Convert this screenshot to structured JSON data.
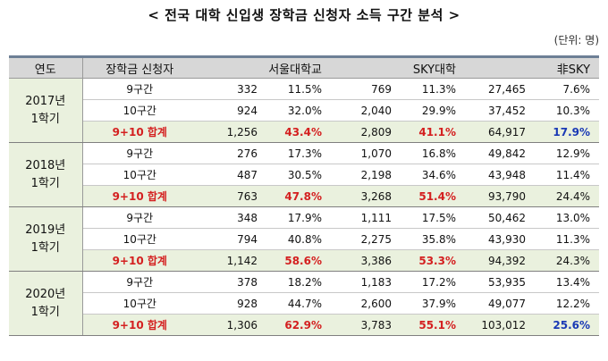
{
  "title": "< 전국 대학 신입생 장학금 신청자 소득 구간 분석 >",
  "unit": "(단위: 명)",
  "headers": [
    "연도",
    "장학금 신청자",
    "서울대학교",
    "SKY대학",
    "非SKY"
  ],
  "groups": [
    {
      "year": "2017년",
      "term": "1학기",
      "rows": [
        {
          "cat": "9구간",
          "snu": "332",
          "snu_pct": "11.5%",
          "sky": "769",
          "sky_pct": "11.3%",
          "non": "27,465",
          "non_pct": "7.6%"
        },
        {
          "cat": "10구간",
          "snu": "924",
          "snu_pct": "32.0%",
          "sky": "2,040",
          "sky_pct": "29.9%",
          "non": "37,452",
          "non_pct": "10.3%"
        },
        {
          "cat": "9+10 합계",
          "snu": "1,256",
          "snu_pct": "43.4%",
          "sky": "2,809",
          "sky_pct": "41.1%",
          "non": "64,917",
          "non_pct": "17.9%"
        }
      ]
    },
    {
      "year": "2018년",
      "term": "1학기",
      "rows": [
        {
          "cat": "9구간",
          "snu": "276",
          "snu_pct": "17.3%",
          "sky": "1,070",
          "sky_pct": "16.8%",
          "non": "49,842",
          "non_pct": "12.9%"
        },
        {
          "cat": "10구간",
          "snu": "487",
          "snu_pct": "30.5%",
          "sky": "2,198",
          "sky_pct": "34.6%",
          "non": "43,948",
          "non_pct": "11.4%"
        },
        {
          "cat": "9+10 합계",
          "snu": "763",
          "snu_pct": "47.8%",
          "sky": "3,268",
          "sky_pct": "51.4%",
          "non": "93,790",
          "non_pct": "24.4%"
        }
      ]
    },
    {
      "year": "2019년",
      "term": "1학기",
      "rows": [
        {
          "cat": "9구간",
          "snu": "348",
          "snu_pct": "17.9%",
          "sky": "1,111",
          "sky_pct": "17.5%",
          "non": "50,462",
          "non_pct": "13.0%"
        },
        {
          "cat": "10구간",
          "snu": "794",
          "snu_pct": "40.8%",
          "sky": "2,275",
          "sky_pct": "35.8%",
          "non": "43,930",
          "non_pct": "11.3%"
        },
        {
          "cat": "9+10 합계",
          "snu": "1,142",
          "snu_pct": "58.6%",
          "sky": "3,386",
          "sky_pct": "53.3%",
          "non": "94,392",
          "non_pct": "24.3%"
        }
      ]
    },
    {
      "year": "2020년",
      "term": "1학기",
      "rows": [
        {
          "cat": "9구간",
          "snu": "378",
          "snu_pct": "18.2%",
          "sky": "1,183",
          "sky_pct": "17.2%",
          "non": "53,935",
          "non_pct": "13.4%"
        },
        {
          "cat": "10구간",
          "snu": "928",
          "snu_pct": "44.7%",
          "sky": "2,600",
          "sky_pct": "37.9%",
          "non": "49,077",
          "non_pct": "12.2%"
        },
        {
          "cat": "9+10 합계",
          "snu": "1,306",
          "snu_pct": "62.9%",
          "sky": "3,783",
          "sky_pct": "55.1%",
          "non": "103,012",
          "non_pct": "25.6%"
        }
      ]
    }
  ],
  "highlight_colors": {
    "red": "#d42020",
    "blue": "#1a3ab5",
    "green_band": "#eaf1de",
    "header_gray": "#d7d7d7"
  }
}
